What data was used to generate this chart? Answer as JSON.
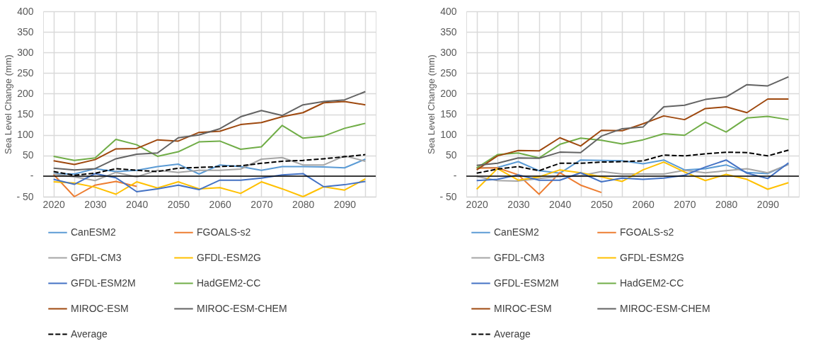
{
  "chart_data": [
    {
      "type": "line",
      "ylabel": "Sea Level Change (mm)",
      "categories": [
        "2020",
        null,
        "2030",
        null,
        "2040",
        null,
        "2050",
        null,
        "2060",
        null,
        "2070",
        null,
        "2080",
        null,
        "2090",
        null
      ],
      "ylim": [
        -50,
        400
      ],
      "yticks": [
        {
          "value": -50,
          "label": "- 50"
        },
        {
          "value": 0,
          "label": "-"
        },
        50,
        100,
        150,
        200,
        250,
        300,
        350,
        400
      ],
      "grid": true,
      "legend": "bottom",
      "ref_lines": [
        {
          "axis": "y",
          "value": 0,
          "color": "#000000"
        }
      ],
      "series": [
        {
          "name": "CanESM2",
          "color": "#5b9bd5",
          "values": [
            6,
            5,
            18,
            11,
            14,
            23,
            29,
            5,
            27,
            23,
            14,
            23,
            23,
            22,
            20,
            41
          ]
        },
        {
          "name": "FGOALS-s2",
          "color": "#ed7d31",
          "values": [
            4,
            -50,
            -22,
            -13,
            -25,
            null,
            null,
            null,
            null,
            null,
            null,
            null,
            null,
            null,
            null,
            null
          ]
        },
        {
          "name": "GFDL-CM3",
          "color": "#a5a5a5",
          "values": [
            5,
            -2,
            -11,
            9,
            -2,
            14,
            9,
            14,
            14,
            17,
            41,
            45,
            27,
            27,
            49,
            36
          ]
        },
        {
          "name": "GFDL-ESM2G",
          "color": "#ffc000",
          "values": [
            -14,
            -17,
            -27,
            -44,
            -14,
            -29,
            -14,
            -31,
            -28,
            -42,
            -14,
            -31,
            -50,
            -26,
            -34,
            -7
          ]
        },
        {
          "name": "GFDL-ESM2M",
          "color": "#4472c4",
          "values": [
            -8,
            -20,
            6,
            -4,
            -38,
            -31,
            -22,
            -33,
            -10,
            -10,
            -5,
            3,
            6,
            -26,
            -21,
            -13
          ]
        },
        {
          "name": "HadGEM2-CC",
          "color": "#70ad47",
          "values": [
            48,
            38,
            44,
            89,
            76,
            48,
            59,
            83,
            85,
            65,
            71,
            123,
            92,
            97,
            116,
            128
          ]
        },
        {
          "name": "MIROC-ESM",
          "color": "#9e480e",
          "values": [
            37,
            28,
            40,
            66,
            67,
            88,
            85,
            106,
            109,
            125,
            130,
            144,
            154,
            178,
            181,
            173
          ]
        },
        {
          "name": "MIROC-ESM-CHEM",
          "color": "#636363",
          "values": [
            19,
            15,
            18,
            42,
            53,
            56,
            93,
            100,
            115,
            144,
            159,
            147,
            173,
            181,
            185,
            205
          ]
        },
        {
          "name": "Average",
          "color": "#000000",
          "line_style": "dashed",
          "values": [
            11,
            2,
            7,
            18,
            14,
            11,
            19,
            21,
            23,
            25,
            31,
            36,
            38,
            42,
            47,
            52
          ]
        }
      ]
    },
    {
      "type": "line",
      "ylabel": "Sea Level Change (mm)",
      "categories": [
        "2020",
        null,
        "2030",
        null,
        "2040",
        null,
        "2050",
        null,
        "2060",
        null,
        "2070",
        null,
        "2080",
        null,
        "2090",
        null
      ],
      "ylim": [
        -50,
        400
      ],
      "yticks": [
        {
          "value": -50,
          "label": "- 50"
        },
        {
          "value": 0,
          "label": "-"
        },
        50,
        100,
        150,
        200,
        250,
        300,
        350,
        400
      ],
      "grid": true,
      "legend": "bottom",
      "ref_lines": [
        {
          "axis": "y",
          "value": 0,
          "color": "#000000"
        }
      ],
      "series": [
        {
          "name": "CanESM2",
          "color": "#5b9bd5",
          "values": [
            20,
            21,
            35,
            13,
            7,
            39,
            38,
            37,
            30,
            39,
            15,
            18,
            27,
            9,
            6,
            29
          ]
        },
        {
          "name": "FGOALS-s2",
          "color": "#ed7d31",
          "values": [
            19,
            20,
            3,
            -44,
            8,
            -22,
            -40,
            null,
            null,
            null,
            null,
            null,
            null,
            null,
            null,
            null
          ]
        },
        {
          "name": "GFDL-CM3",
          "color": "#a5a5a5",
          "values": [
            -1,
            -11,
            -12,
            -6,
            -1,
            1,
            11,
            5,
            5,
            5,
            14,
            8,
            13,
            18,
            8,
            28
          ]
        },
        {
          "name": "GFDL-ESM2G",
          "color": "#ffc000",
          "values": [
            -32,
            18,
            -10,
            -2,
            15,
            8,
            -2,
            -13,
            15,
            34,
            10,
            -11,
            4,
            -8,
            -32,
            -16
          ]
        },
        {
          "name": "GFDL-ESM2M",
          "color": "#4472c4",
          "values": [
            -11,
            -8,
            3,
            -10,
            -10,
            8,
            -14,
            -5,
            -8,
            -5,
            2,
            22,
            39,
            7,
            -6,
            32
          ]
        },
        {
          "name": "HadGEM2-CC",
          "color": "#70ad47",
          "values": [
            20,
            52,
            56,
            44,
            77,
            92,
            87,
            78,
            88,
            103,
            99,
            131,
            107,
            141,
            145,
            137
          ]
        },
        {
          "name": "MIROC-ESM",
          "color": "#9e480e",
          "values": [
            15,
            49,
            62,
            61,
            93,
            73,
            111,
            110,
            127,
            146,
            137,
            164,
            168,
            154,
            187,
            187
          ]
        },
        {
          "name": "MIROC-ESM-CHEM",
          "color": "#636363",
          "values": [
            26,
            31,
            44,
            43,
            58,
            57,
            97,
            115,
            119,
            168,
            172,
            186,
            192,
            222,
            219,
            241
          ]
        },
        {
          "name": "Average",
          "color": "#000000",
          "line_style": "dashed",
          "values": [
            7,
            17,
            23,
            13,
            31,
            31,
            34,
            35,
            37,
            51,
            49,
            54,
            58,
            57,
            49,
            63
          ]
        }
      ]
    }
  ]
}
